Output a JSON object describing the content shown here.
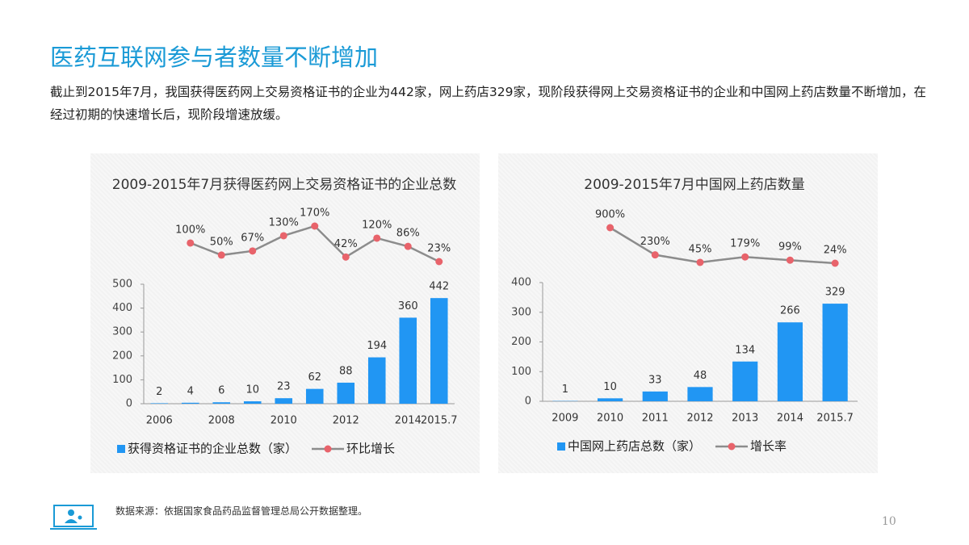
{
  "header": {
    "title": "医药互联网参与者数量不断增加",
    "description": "截止到2015年7月，我国获得医药网上交易资格证书的企业为442家，网上药店329家，现阶段获得网上交易资格证书的企业和中国网上药店数量不断增加，在经过初期的快速增长后，现阶段增速放缓。"
  },
  "chart_data": [
    {
      "type": "bar",
      "title": "2009-2015年7月获得医药网上交易资格证书的企业总数",
      "categories": [
        "2006",
        null,
        "2008",
        null,
        "2010",
        null,
        "2012",
        null,
        "2014",
        "2015.7"
      ],
      "series": [
        {
          "name": "获得资格证书的企业总数（家）",
          "color": "#2196f3",
          "values": [
            2,
            4,
            6,
            10,
            23,
            62,
            88,
            194,
            360,
            442
          ]
        },
        {
          "name": "环比增长",
          "type": "line",
          "color": "#8c8c8c",
          "marker_color": "#e8636b",
          "values": [
            null,
            100,
            50,
            67,
            130,
            170,
            42,
            120,
            86,
            23
          ],
          "value_labels": [
            null,
            "100%",
            "50%",
            "67%",
            "130%",
            "170%",
            "42%",
            "120%",
            "86%",
            "23%"
          ]
        }
      ],
      "ylim": [
        0,
        500
      ],
      "yticks": [
        0,
        100,
        200,
        300,
        400,
        500
      ],
      "legend": "bottom"
    },
    {
      "type": "bar",
      "title": "2009-2015年7月中国网上药店数量",
      "categories": [
        "2009",
        "2010",
        "2011",
        "2012",
        "2013",
        "2014",
        "2015.7"
      ],
      "series": [
        {
          "name": "中国网上药店总数（家）",
          "color": "#2196f3",
          "values": [
            1,
            10,
            33,
            48,
            134,
            266,
            329
          ]
        },
        {
          "name": "增长率",
          "type": "line",
          "color": "#8c8c8c",
          "marker_color": "#e8636b",
          "values": [
            null,
            900,
            230,
            45,
            179,
            99,
            24
          ],
          "value_labels": [
            null,
            "900%",
            "230%",
            "45%",
            "179%",
            "99%",
            "24%"
          ]
        }
      ],
      "ylim": [
        0,
        400
      ],
      "yticks": [
        0,
        100,
        200,
        300,
        400
      ],
      "legend": "bottom"
    }
  ],
  "footer": {
    "source": "数据来源：依据国家食品药品监督管理总局公开数据整理。",
    "page": "10"
  }
}
